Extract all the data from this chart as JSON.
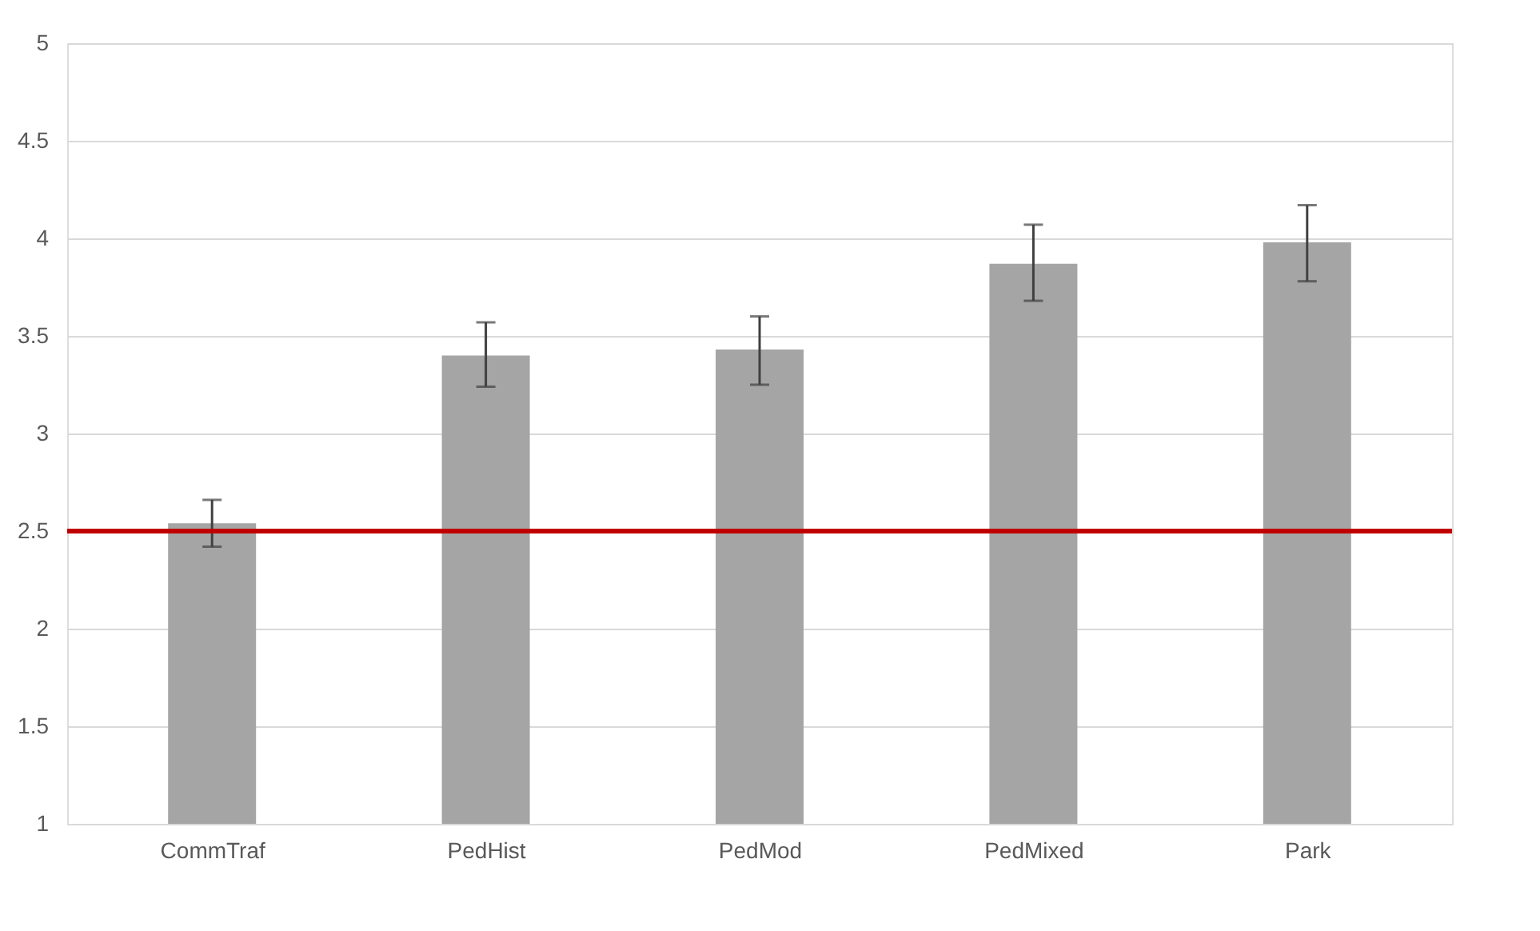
{
  "chart_data": {
    "type": "bar",
    "categories": [
      "CommTraf",
      "PedHist",
      "PedMod",
      "PedMixed",
      "Park"
    ],
    "values": [
      2.54,
      3.4,
      3.43,
      3.87,
      3.98
    ],
    "errors": [
      [
        2.42,
        2.66
      ],
      [
        3.24,
        3.57
      ],
      [
        3.25,
        3.6
      ],
      [
        3.68,
        4.07
      ],
      [
        3.78,
        4.17
      ]
    ],
    "color": "#a5a5a5",
    "ylim": [
      1,
      5
    ],
    "yticks": [
      1,
      1.5,
      2,
      2.5,
      3,
      3.5,
      4,
      4.5,
      5
    ],
    "grid": "y",
    "ref_lines": [
      {
        "axis": "y",
        "value": 2.5,
        "color": "#c00000",
        "line_style": "solid"
      }
    ]
  }
}
